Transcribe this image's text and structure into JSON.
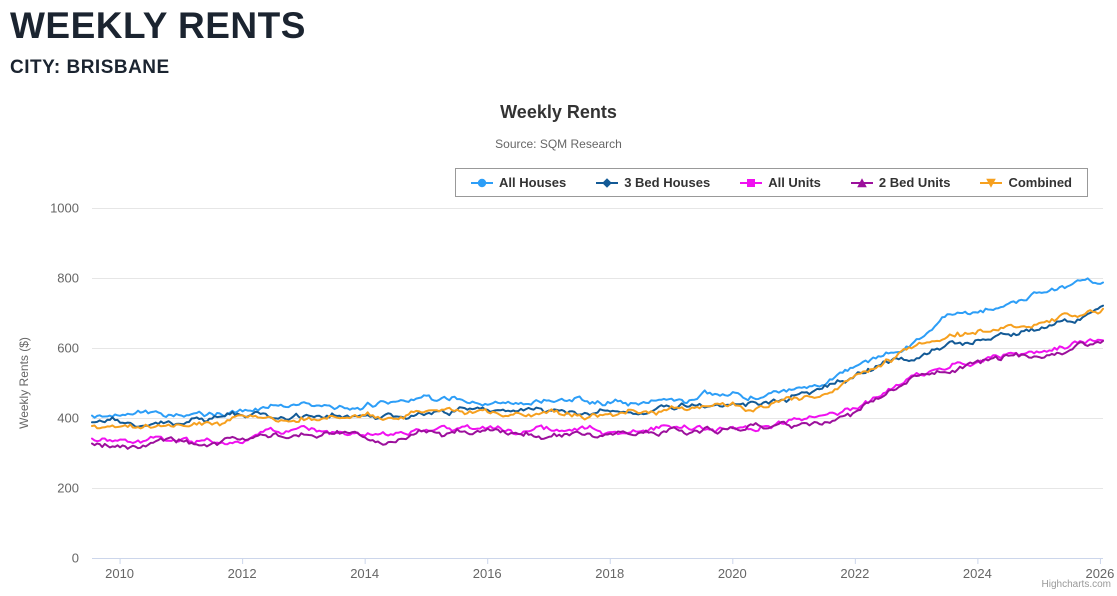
{
  "page": {
    "title": "WEEKLY RENTS",
    "subtitle": "CITY: BRISBANE"
  },
  "ui": {
    "credits": "Highcharts.com"
  },
  "colors": {
    "header_text": "#1b2430",
    "chart_title": "#333333",
    "chart_subtitle": "#666666",
    "axis_label": "#666666",
    "gridline": "#e6e6e6",
    "axis_line": "#ccd6eb",
    "legend_border": "#999999",
    "credits_text": "#999999"
  },
  "chart_data": {
    "type": "line",
    "title": "Weekly Rents",
    "subtitle": "Source: SQM Research",
    "xlabel": "",
    "ylabel": "Weekly Rents ($)",
    "units": "dollars per week",
    "xlim": [
      2009.55,
      2026.05
    ],
    "ylim": [
      0,
      1000
    ],
    "xticks": [
      2010,
      2012,
      2014,
      2016,
      2018,
      2020,
      2022,
      2024,
      2026
    ],
    "yticks": [
      0,
      200,
      400,
      600,
      800,
      1000
    ],
    "grid": "horizontal",
    "legend_position": "top-right",
    "series": [
      {
        "name": "All Houses",
        "color": "#2d9ef7",
        "marker": "circle",
        "points": [
          [
            2009.5,
            408
          ],
          [
            2010,
            404
          ],
          [
            2010.5,
            406
          ],
          [
            2011,
            409
          ],
          [
            2011.5,
            413
          ],
          [
            2012,
            420
          ],
          [
            2012.5,
            429
          ],
          [
            2013,
            433
          ],
          [
            2013.5,
            437
          ],
          [
            2014,
            440
          ],
          [
            2014.5,
            443
          ],
          [
            2015,
            445
          ],
          [
            2015.5,
            447
          ],
          [
            2016,
            448
          ],
          [
            2016.5,
            446
          ],
          [
            2017,
            443
          ],
          [
            2017.5,
            444
          ],
          [
            2018,
            445
          ],
          [
            2018.5,
            448
          ],
          [
            2019,
            452
          ],
          [
            2019.4,
            455
          ],
          [
            2019.55,
            466
          ],
          [
            2019.8,
            458
          ],
          [
            2020,
            461
          ],
          [
            2020.5,
            468
          ],
          [
            2021,
            488
          ],
          [
            2021.5,
            510
          ],
          [
            2022,
            545
          ],
          [
            2022.5,
            595
          ],
          [
            2023,
            632
          ],
          [
            2023.5,
            686
          ],
          [
            2024,
            708
          ],
          [
            2024.5,
            730
          ],
          [
            2025,
            748
          ],
          [
            2025.5,
            768
          ],
          [
            2026.05,
            788
          ]
        ]
      },
      {
        "name": "3 Bed Houses",
        "color": "#135a96",
        "marker": "diamond",
        "points": [
          [
            2009.5,
            386
          ],
          [
            2010,
            382
          ],
          [
            2010.5,
            386
          ],
          [
            2011,
            390
          ],
          [
            2011.5,
            394
          ],
          [
            2012,
            400
          ],
          [
            2012.5,
            405
          ],
          [
            2013,
            408
          ],
          [
            2013.5,
            411
          ],
          [
            2014,
            413
          ],
          [
            2014.5,
            415
          ],
          [
            2015,
            417
          ],
          [
            2015.5,
            418
          ],
          [
            2016,
            419
          ],
          [
            2016.5,
            418
          ],
          [
            2017,
            418
          ],
          [
            2017.5,
            419
          ],
          [
            2018,
            420
          ],
          [
            2018.5,
            422
          ],
          [
            2019,
            426
          ],
          [
            2019.55,
            438
          ],
          [
            2019.8,
            430
          ],
          [
            2020,
            434
          ],
          [
            2020.5,
            440
          ],
          [
            2021,
            458
          ],
          [
            2021.5,
            478
          ],
          [
            2022,
            518
          ],
          [
            2022.5,
            558
          ],
          [
            2023,
            585
          ],
          [
            2023.5,
            610
          ],
          [
            2024,
            628
          ],
          [
            2024.5,
            643
          ],
          [
            2025,
            660
          ],
          [
            2025.5,
            680
          ],
          [
            2026.05,
            708
          ]
        ]
      },
      {
        "name": "All Units",
        "color": "#f011f0",
        "marker": "square",
        "points": [
          [
            2009.5,
            336
          ],
          [
            2010,
            332
          ],
          [
            2010.5,
            335
          ],
          [
            2011,
            339
          ],
          [
            2011.5,
            344
          ],
          [
            2012,
            350
          ],
          [
            2012.5,
            355
          ],
          [
            2013,
            358
          ],
          [
            2013.5,
            360
          ],
          [
            2014,
            362
          ],
          [
            2014.5,
            363
          ],
          [
            2015,
            364
          ],
          [
            2015.5,
            366
          ],
          [
            2016,
            369
          ],
          [
            2016.5,
            368
          ],
          [
            2017,
            367
          ],
          [
            2017.5,
            366
          ],
          [
            2018,
            368
          ],
          [
            2018.5,
            369
          ],
          [
            2019,
            370
          ],
          [
            2019.5,
            372
          ],
          [
            2020,
            373
          ],
          [
            2020.5,
            379
          ],
          [
            2021,
            387
          ],
          [
            2021.5,
            397
          ],
          [
            2022,
            418
          ],
          [
            2022.5,
            465
          ],
          [
            2023,
            520
          ],
          [
            2023.5,
            548
          ],
          [
            2024,
            566
          ],
          [
            2024.5,
            582
          ],
          [
            2025,
            590
          ],
          [
            2025.5,
            601
          ],
          [
            2026.05,
            627
          ]
        ]
      },
      {
        "name": "2 Bed Units",
        "color": "#9c109c",
        "marker": "triangle",
        "points": [
          [
            2009.5,
            327
          ],
          [
            2010,
            322
          ],
          [
            2010.5,
            325
          ],
          [
            2011,
            329
          ],
          [
            2011.5,
            334
          ],
          [
            2012,
            340
          ],
          [
            2012.5,
            344
          ],
          [
            2013,
            347
          ],
          [
            2013.5,
            349
          ],
          [
            2014,
            351
          ],
          [
            2014.5,
            352
          ],
          [
            2015,
            354
          ],
          [
            2015.5,
            356
          ],
          [
            2016,
            359
          ],
          [
            2016.5,
            358
          ],
          [
            2017,
            356
          ],
          [
            2017.5,
            355
          ],
          [
            2018,
            357
          ],
          [
            2018.5,
            359
          ],
          [
            2019,
            361
          ],
          [
            2019.5,
            364
          ],
          [
            2020,
            367
          ],
          [
            2020.5,
            374
          ],
          [
            2021,
            383
          ],
          [
            2021.5,
            394
          ],
          [
            2022,
            414
          ],
          [
            2022.5,
            460
          ],
          [
            2023,
            512
          ],
          [
            2023.5,
            540
          ],
          [
            2024,
            556
          ],
          [
            2024.5,
            572
          ],
          [
            2025,
            580
          ],
          [
            2025.5,
            592
          ],
          [
            2026.05,
            614
          ]
        ]
      },
      {
        "name": "Combined",
        "color": "#f6a01f",
        "marker": "triangle-down",
        "points": [
          [
            2009.5,
            377
          ],
          [
            2010,
            372
          ],
          [
            2010.5,
            376
          ],
          [
            2011,
            380
          ],
          [
            2011.5,
            384
          ],
          [
            2012,
            391
          ],
          [
            2012.5,
            397
          ],
          [
            2013,
            401
          ],
          [
            2013.5,
            404
          ],
          [
            2014,
            407
          ],
          [
            2014.5,
            409
          ],
          [
            2015,
            411
          ],
          [
            2015.5,
            413
          ],
          [
            2016,
            415
          ],
          [
            2016.5,
            414
          ],
          [
            2017,
            413
          ],
          [
            2017.5,
            414
          ],
          [
            2018,
            414
          ],
          [
            2018.5,
            417
          ],
          [
            2019,
            421
          ],
          [
            2019.5,
            428
          ],
          [
            2020,
            431
          ],
          [
            2020.5,
            438
          ],
          [
            2021,
            452
          ],
          [
            2021.5,
            474
          ],
          [
            2022,
            512
          ],
          [
            2022.5,
            556
          ],
          [
            2023,
            600
          ],
          [
            2023.5,
            622
          ],
          [
            2024,
            645
          ],
          [
            2024.5,
            660
          ],
          [
            2025,
            672
          ],
          [
            2025.5,
            686
          ],
          [
            2026.05,
            712
          ]
        ]
      }
    ]
  }
}
